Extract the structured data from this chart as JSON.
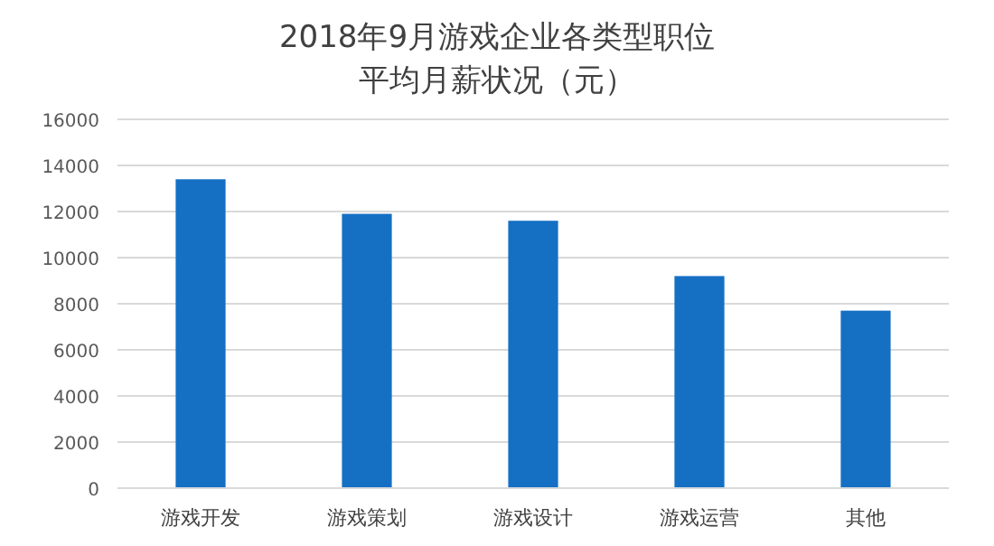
{
  "chart_data": {
    "type": "bar",
    "title": "2018年9月游戏企业各类型职位",
    "subtitle": "平均月薪状况（元）",
    "categories": [
      "游戏开发",
      "游戏策划",
      "游戏设计",
      "游戏运营",
      "其他"
    ],
    "values": [
      13400,
      11900,
      11600,
      9200,
      7700
    ],
    "color": "#1570c4",
    "ylim": [
      0,
      16000
    ],
    "yticks": [
      0,
      2000,
      4000,
      6000,
      8000,
      10000,
      12000,
      14000,
      16000
    ],
    "grid": "y"
  }
}
